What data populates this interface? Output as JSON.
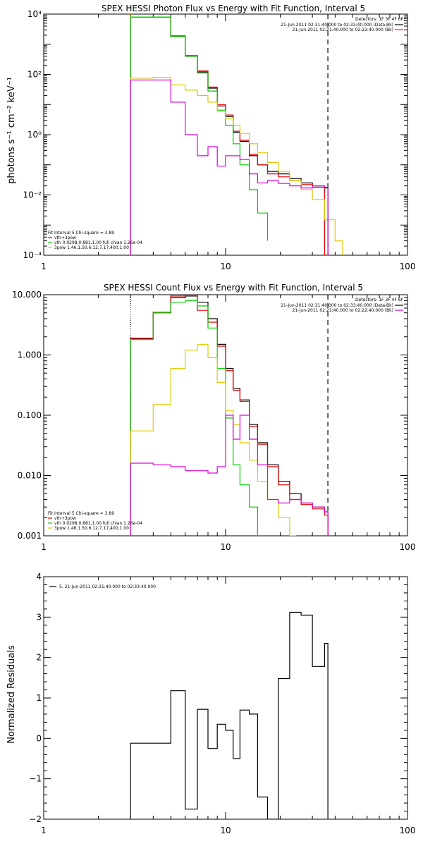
{
  "chart_data": [
    {
      "type": "line",
      "title": "SPEX HESSI Photon Flux vs Energy with Fit Function, Interval 5",
      "ylabel": "photons s⁻¹ cm⁻² keV⁻¹",
      "xscale": "log",
      "yscale": "log",
      "xlim": [
        1,
        100
      ],
      "ylim": [
        0.0001,
        10000
      ],
      "xticks": [
        1,
        10,
        100
      ],
      "xtick_labels": [
        "1",
        "10",
        "100"
      ],
      "yticks": [
        0.0001,
        0.01,
        1,
        100,
        10000
      ],
      "ytick_labels": [
        "10⁻⁴",
        "10⁻²",
        "10⁰",
        "10²",
        "10⁴"
      ],
      "vlines": [
        {
          "x": 3.0,
          "style": "dotted",
          "color": "#e0a000"
        },
        {
          "x": 36.5,
          "style": "dashed",
          "color": "#000000"
        }
      ],
      "legend_top_right": {
        "title": "Detectors: 1F 3F 4F 6F",
        "entries": [
          {
            "label": "21-Jun-2011 02:31:40.000 to 02:33:40.000 (Data-Bk)",
            "color": "#000000"
          },
          {
            "label": "21-Jun-2011 02:21:40.000 to 02:22:40.000 (Bk)",
            "color": "#e000e0"
          }
        ]
      },
      "legend_bottom_left": {
        "header": "Fit Interval 5  Chi-square = 3.89",
        "entries": [
          {
            "label": "vth+3pow",
            "color": "#e00000"
          },
          {
            "label": "vth 0.0298,0.881,1.00  full chian 1.26e-04",
            "color": "#00cc00"
          },
          {
            "label": "3pow 1.46,1.50,6.12,7.17,400,1.00",
            "color": "#e0c800"
          }
        ]
      },
      "series": [
        {
          "color": "#000000",
          "edges": [
            3.0,
            4.0,
            5.0,
            6.0,
            7.0,
            8.0,
            9.0,
            10.0,
            11.0,
            12.0,
            13.5,
            15.0,
            17.0,
            19.5,
            22.5,
            26.0,
            30.0,
            35.0,
            36.5
          ],
          "values": [
            8000,
            8000,
            1800,
            400,
            120,
            35,
            9,
            4,
            1.2,
            0.6,
            0.2,
            0.1,
            0.06,
            0.05,
            0.035,
            0.025,
            0.02,
            0.017
          ]
        },
        {
          "color": "#e00000",
          "edges": [
            3.0,
            4.0,
            5.0,
            6.0,
            7.0,
            8.0,
            9.0,
            10.0,
            11.0,
            12.0,
            13.5,
            15.0,
            17.0,
            19.5,
            22.5,
            26.0,
            30.0,
            35.0,
            36.5
          ],
          "values": [
            8000,
            8000,
            1900,
            420,
            130,
            38,
            10,
            4.5,
            1.3,
            0.65,
            0.22,
            0.1,
            0.05,
            0.04,
            0.03,
            0.022,
            0.018,
            0.0001
          ]
        },
        {
          "color": "#00cc00",
          "edges": [
            3.0,
            4.0,
            5.0,
            6.0,
            7.0,
            8.0,
            9.0,
            10.0,
            11.0,
            12.0,
            13.5,
            15.0,
            17.0
          ],
          "values": [
            8000,
            8000,
            1800,
            400,
            110,
            28,
            6.5,
            2,
            0.5,
            0.1,
            0.015,
            0.0025,
            0.0003
          ]
        },
        {
          "color": "#e0c800",
          "edges": [
            3.0,
            4.0,
            5.0,
            6.0,
            7.0,
            8.0,
            9.0,
            10.0,
            11.0,
            12.0,
            13.5,
            15.0,
            17.0,
            19.5,
            22.5,
            26.0,
            30.0,
            35.0,
            40.0,
            44.0
          ],
          "values": [
            75,
            80,
            45,
            30,
            20,
            12,
            6,
            3.5,
            2,
            1.1,
            0.5,
            0.25,
            0.12,
            0.06,
            0.03,
            0.015,
            0.007,
            0.0015,
            0.0003,
            0.0001
          ]
        },
        {
          "color": "#e000e0",
          "edges": [
            3.0,
            4.0,
            5.0,
            6.0,
            7.0,
            8.0,
            9.0,
            10.0,
            11.0,
            12.0,
            13.5,
            15.0,
            17.0,
            19.5,
            22.5,
            26.0,
            30.0,
            35.0,
            36.5
          ],
          "values": [
            65,
            65,
            12,
            1,
            0.2,
            0.4,
            0.09,
            0.2,
            0.2,
            0.15,
            0.05,
            0.025,
            0.03,
            0.024,
            0.02,
            0.017,
            0.02,
            0.018
          ]
        }
      ]
    },
    {
      "type": "line",
      "title": "SPEX HESSI Count Flux vs Energy with Fit Function, Interval 5",
      "xscale": "log",
      "yscale": "log",
      "xlim": [
        1,
        100
      ],
      "ylim": [
        0.001,
        10
      ],
      "xticks": [
        1,
        10,
        100
      ],
      "xtick_labels": [
        "1",
        "10",
        "100"
      ],
      "yticks": [
        0.001,
        0.01,
        0.1,
        1,
        10
      ],
      "ytick_labels": [
        "0.001",
        "0.010",
        "0.100",
        "1.000",
        "10.000"
      ],
      "vlines": [
        {
          "x": 3.0,
          "style": "dotted",
          "color": "#000000"
        },
        {
          "x": 36.5,
          "style": "dashed",
          "color": "#000000"
        }
      ],
      "legend_top_right": {
        "title": "Detectors: 1F 3F 4F 6F",
        "entries": [
          {
            "label": "21-Jun-2011 02:31:40.000 to 02:33:40.000 (Data-Bk)",
            "color": "#000000"
          },
          {
            "label": "21-Jun-2011 02:21:40.000 to 02:22:40.000 (Bk)",
            "color": "#e000e0"
          }
        ]
      },
      "legend_bottom_left": {
        "header": "Fit Interval 5  Chi-square = 3.89",
        "entries": [
          {
            "label": "vth+3pow",
            "color": "#e00000"
          },
          {
            "label": "vth 0.0298,0.881,1.00  full chian 1.26e-04",
            "color": "#00cc00"
          },
          {
            "label": "3pow 1.46,1.50,6.12,7.17,400,1.00",
            "color": "#e0c800"
          }
        ]
      },
      "series": [
        {
          "color": "#000000",
          "edges": [
            3.0,
            4.0,
            5.0,
            6.0,
            7.0,
            8.0,
            9.0,
            10.0,
            11.0,
            12.0,
            13.5,
            15.0,
            17.0,
            19.5,
            22.5,
            26.0,
            30.0,
            35.0,
            36.5
          ],
          "values": [
            1.9,
            5,
            9,
            9.5,
            7.5,
            4,
            1.5,
            0.6,
            0.28,
            0.18,
            0.07,
            0.035,
            0.015,
            0.008,
            0.005,
            0.0035,
            0.003,
            0.0025
          ]
        },
        {
          "color": "#e00000",
          "edges": [
            3.0,
            4.0,
            5.0,
            6.0,
            7.0,
            8.0,
            9.0,
            10.0,
            11.0,
            12.0,
            13.5,
            15.0,
            17.0,
            19.5,
            22.5,
            26.0,
            30.0,
            35.0,
            36.5
          ],
          "values": [
            1.85,
            5.1,
            9.5,
            10,
            5.5,
            3.5,
            1.4,
            0.55,
            0.26,
            0.17,
            0.065,
            0.033,
            0.014,
            0.007,
            0.004,
            0.0033,
            0.0028,
            0.0022
          ]
        },
        {
          "color": "#00cc00",
          "edges": [
            3.0,
            4.0,
            5.0,
            6.0,
            7.0,
            8.0,
            9.0,
            10.0,
            11.0,
            12.0,
            13.5,
            15.0
          ],
          "values": [
            1.8,
            5,
            7.5,
            8,
            6.5,
            2.8,
            0.6,
            0.09,
            0.015,
            0.007,
            0.003,
            0.001
          ]
        },
        {
          "color": "#e0c800",
          "edges": [
            3.0,
            4.0,
            5.0,
            6.0,
            7.0,
            8.0,
            9.0,
            10.0,
            11.0,
            12.0,
            13.5,
            15.0,
            17.0,
            19.5,
            22.5,
            24.5
          ],
          "values": [
            0.055,
            0.15,
            0.6,
            1.2,
            1.5,
            0.9,
            0.35,
            0.12,
            0.07,
            0.035,
            0.018,
            0.008,
            0.004,
            0.002,
            0.001
          ]
        },
        {
          "color": "#e000e0",
          "edges": [
            3.0,
            4.0,
            5.0,
            6.0,
            7.0,
            8.0,
            9.0,
            10.0,
            11.0,
            12.0,
            13.5,
            15.0,
            17.0,
            19.5,
            22.5,
            26.0,
            30.0,
            35.0,
            36.5
          ],
          "values": [
            0.016,
            0.015,
            0.014,
            0.012,
            0.012,
            0.011,
            0.014,
            0.1,
            0.04,
            0.1,
            0.04,
            0.015,
            0.004,
            0.0035,
            0.004,
            0.0035,
            0.003,
            0.0025
          ]
        }
      ]
    },
    {
      "type": "line",
      "ylabel": "Normalized Residuals",
      "xscale": "log",
      "yscale": "linear",
      "xlim": [
        1,
        100
      ],
      "ylim": [
        -2,
        4
      ],
      "xticks": [
        1,
        10,
        100
      ],
      "xtick_labels": [
        "1",
        "10",
        "100"
      ],
      "yticks": [
        -2,
        -1,
        0,
        1,
        2,
        3,
        4
      ],
      "ytick_labels": [
        "−2",
        "−1",
        "0",
        "1",
        "2",
        "3",
        "4"
      ],
      "legend_top_left": {
        "entries": [
          {
            "label": "5, 21-Jun-2011 02:31:40.000 to 02:33:40.000",
            "color": "#000000"
          }
        ]
      },
      "series": [
        {
          "color": "#000000",
          "edges": [
            3.0,
            4.0,
            5.0,
            6.0,
            7.0,
            8.0,
            9.0,
            10.0,
            11.0,
            12.0,
            13.5,
            15.0,
            17.0,
            19.5,
            22.5,
            26.0,
            30.0,
            35.0,
            36.5
          ],
          "values": [
            -0.12,
            -0.12,
            1.18,
            -1.75,
            0.72,
            -0.25,
            0.35,
            0.2,
            -0.5,
            0.7,
            0.6,
            -1.45,
            -2.0,
            1.48,
            3.12,
            3.05,
            1.78,
            2.35
          ]
        }
      ]
    }
  ]
}
